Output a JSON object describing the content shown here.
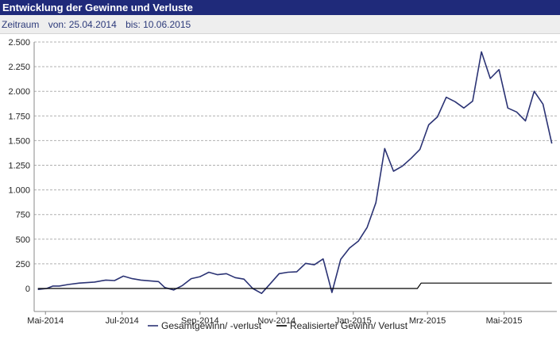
{
  "header": {
    "title": "Entwicklung der Gewinne und Verluste"
  },
  "period": {
    "label": "Zeitraum",
    "from": "von: 25.04.2014",
    "to": "bis: 10.06.2015"
  },
  "colors": {
    "header_bg": "#1f2a7a",
    "series_total": "#2b3374",
    "series_realized": "#000000",
    "grid": "#b0b0b0"
  },
  "chart_data": {
    "type": "line",
    "title": "",
    "xlabel": "",
    "ylabel": "",
    "ylim": [
      -100,
      2500
    ],
    "y_ticks": [
      0,
      250,
      500,
      750,
      1000,
      1250,
      1500,
      1750,
      2000,
      2250,
      2500
    ],
    "y_tick_labels": [
      "0",
      "250",
      "500",
      "750",
      "1.000",
      "1.250",
      "1.500",
      "1.750",
      "2.000",
      "2.250",
      "2.500"
    ],
    "x_range": [
      "2014-04-22",
      "2015-06-12"
    ],
    "x_ticks": [
      "2014-05-01",
      "2014-07-01",
      "2014-09-01",
      "2014-11-01",
      "2015-01-01",
      "2015-03-01",
      "2015-05-01"
    ],
    "x_tick_labels": [
      "Mai-2014",
      "Jul-2014",
      "Sep-2014",
      "Nov-2014",
      "Jan-2015",
      "Mrz-2015",
      "Mai-2015"
    ],
    "grid": "horizontal dashed",
    "legend_position": "bottom",
    "series": [
      {
        "name": "Gesamtgewinn/ -verlust",
        "points": [
          [
            "2014-04-25",
            -10
          ],
          [
            "2014-05-02",
            0
          ],
          [
            "2014-05-07",
            25
          ],
          [
            "2014-05-12",
            25
          ],
          [
            "2014-05-19",
            40
          ],
          [
            "2014-05-28",
            55
          ],
          [
            "2014-06-09",
            65
          ],
          [
            "2014-06-18",
            85
          ],
          [
            "2014-06-25",
            80
          ],
          [
            "2014-07-02",
            125
          ],
          [
            "2014-07-09",
            100
          ],
          [
            "2014-07-16",
            85
          ],
          [
            "2014-07-30",
            70
          ],
          [
            "2014-08-04",
            10
          ],
          [
            "2014-08-11",
            -15
          ],
          [
            "2014-08-18",
            30
          ],
          [
            "2014-08-25",
            100
          ],
          [
            "2014-09-01",
            120
          ],
          [
            "2014-09-08",
            165
          ],
          [
            "2014-09-15",
            140
          ],
          [
            "2014-09-22",
            150
          ],
          [
            "2014-09-29",
            110
          ],
          [
            "2014-10-06",
            95
          ],
          [
            "2014-10-13",
            0
          ],
          [
            "2014-10-20",
            -50
          ],
          [
            "2014-10-27",
            50
          ],
          [
            "2014-11-03",
            150
          ],
          [
            "2014-11-10",
            165
          ],
          [
            "2014-11-17",
            170
          ],
          [
            "2014-11-24",
            255
          ],
          [
            "2014-12-01",
            240
          ],
          [
            "2014-12-08",
            300
          ],
          [
            "2014-12-15",
            -40
          ],
          [
            "2014-12-22",
            295
          ],
          [
            "2014-12-29",
            410
          ],
          [
            "2015-01-05",
            480
          ],
          [
            "2015-01-12",
            620
          ],
          [
            "2015-01-19",
            870
          ],
          [
            "2015-01-26",
            1420
          ],
          [
            "2015-02-02",
            1190
          ],
          [
            "2015-02-09",
            1240
          ],
          [
            "2015-02-16",
            1320
          ],
          [
            "2015-02-23",
            1410
          ],
          [
            "2015-03-02",
            1660
          ],
          [
            "2015-03-09",
            1740
          ],
          [
            "2015-03-16",
            1940
          ],
          [
            "2015-03-23",
            1895
          ],
          [
            "2015-03-30",
            1830
          ],
          [
            "2015-04-06",
            1900
          ],
          [
            "2015-04-13",
            2400
          ],
          [
            "2015-04-20",
            2130
          ],
          [
            "2015-04-27",
            2220
          ],
          [
            "2015-05-04",
            1830
          ],
          [
            "2015-05-11",
            1790
          ],
          [
            "2015-05-18",
            1700
          ],
          [
            "2015-05-25",
            2000
          ],
          [
            "2015-06-01",
            1870
          ],
          [
            "2015-06-08",
            1470
          ]
        ]
      },
      {
        "name": "Realisierter Gewinn/ Verlust",
        "points": [
          [
            "2014-04-25",
            0
          ],
          [
            "2015-02-21",
            0
          ],
          [
            "2015-02-24",
            55
          ],
          [
            "2015-06-08",
            55
          ]
        ]
      }
    ]
  }
}
